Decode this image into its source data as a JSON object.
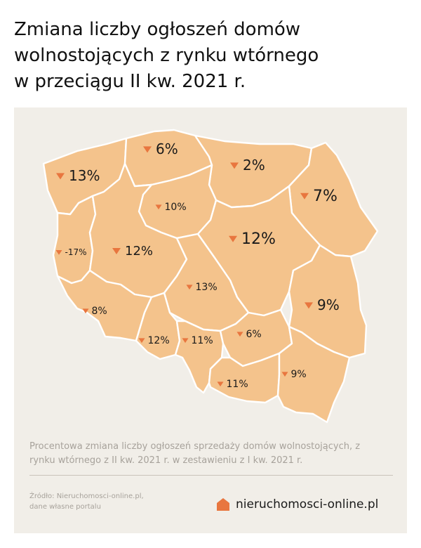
{
  "title": {
    "lines": [
      "Zmiana liczby ogłoszeń domów",
      "wolnostojących z rynku wtórnego",
      "w przeciągu II kw. 2021 r."
    ]
  },
  "map": {
    "region_color": "#f4c38c",
    "border_color": "#ffffff",
    "marker_color": "#e8763f",
    "background": "#f1eee8",
    "labels": [
      {
        "id": "zachodniopomorskie",
        "value": "13%"
      },
      {
        "id": "pomorskie",
        "value": "6%"
      },
      {
        "id": "warminsko-mazurskie",
        "value": "2%"
      },
      {
        "id": "podlaskie",
        "value": "7%"
      },
      {
        "id": "kujawsko-pomorskie",
        "value": "10%"
      },
      {
        "id": "lubuskie",
        "value": "-17%"
      },
      {
        "id": "wielkopolskie",
        "value": "12%"
      },
      {
        "id": "mazowieckie",
        "value": "12%"
      },
      {
        "id": "lodzkie",
        "value": "13%"
      },
      {
        "id": "dolnoslaskie",
        "value": "8%"
      },
      {
        "id": "lubelskie",
        "value": "9%"
      },
      {
        "id": "opolskie",
        "value": "12%"
      },
      {
        "id": "slaskie",
        "value": "11%"
      },
      {
        "id": "swietokrzyskie",
        "value": "6%"
      },
      {
        "id": "malopolskie",
        "value": "11%"
      },
      {
        "id": "podkarpackie",
        "value": "9%"
      }
    ]
  },
  "caption": {
    "lines": [
      "Procentowa zmiana liczby ogłoszeń sprzedaży domów wolnostojących, z",
      "rynku wtórnego z II kw. 2021 r. w zestawieniu z I kw. 2021 r."
    ]
  },
  "source": {
    "lines": [
      "Źródło: Nieruchomosci-online.pl,",
      "dane własne portalu"
    ]
  },
  "brand": {
    "name": "nieruchomosci-online.pl",
    "icon": "house-icon",
    "icon_color": "#e8763f"
  }
}
